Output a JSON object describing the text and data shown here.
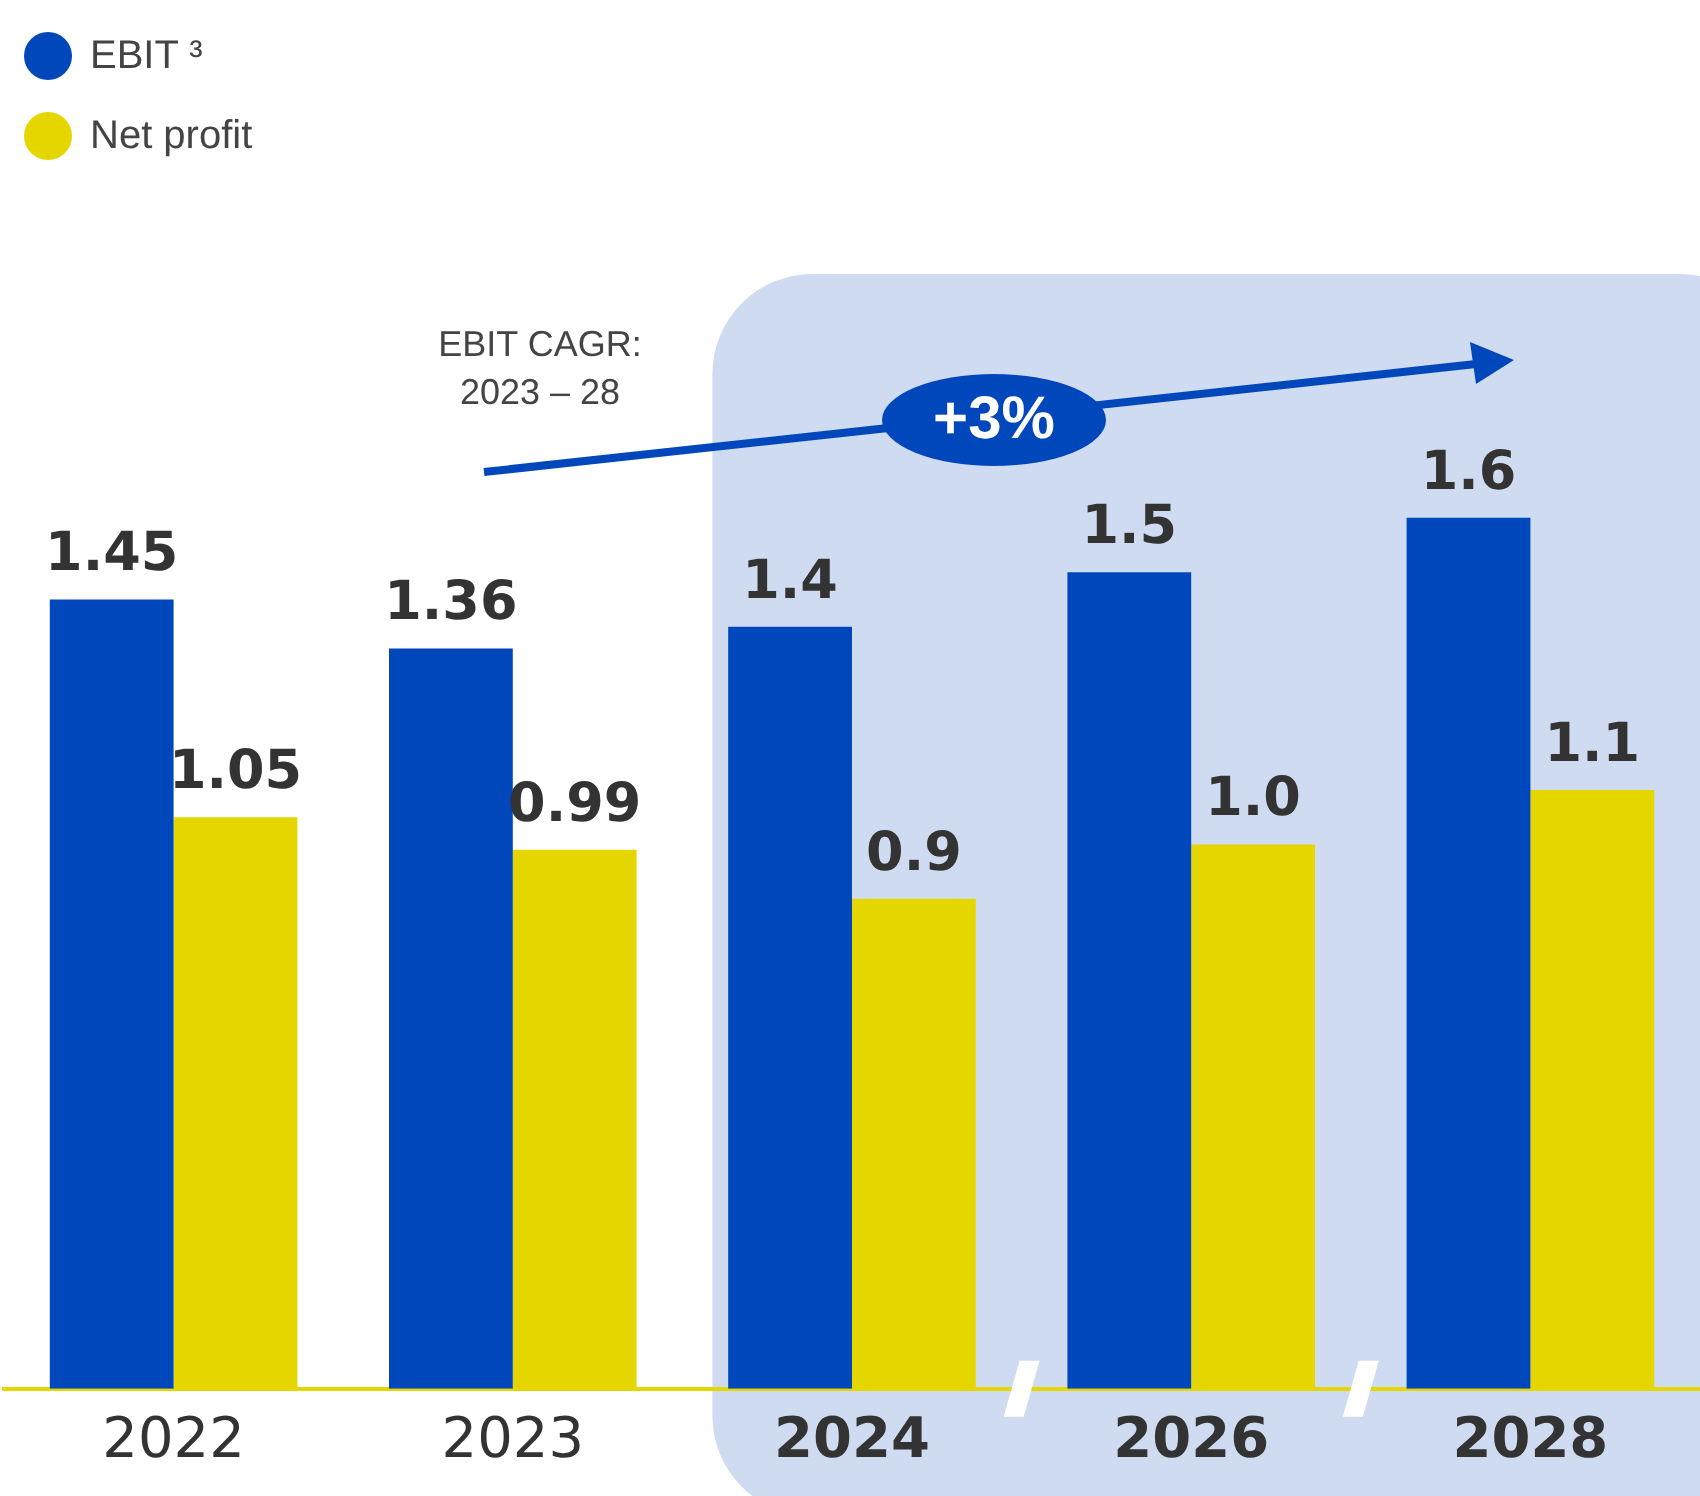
{
  "chart_data": {
    "type": "bar",
    "categories": [
      "2022",
      "2023",
      "2024",
      "2026",
      "2028"
    ],
    "series": [
      {
        "name": "EBIT ³",
        "color": "#0047bb",
        "values": [
          1.45,
          1.36,
          1.4,
          1.5,
          1.6
        ],
        "value_labels": [
          "1.45",
          "1.36",
          "1.4",
          "1.5",
          "1.6"
        ]
      },
      {
        "name": "Net profit",
        "color": "#e5d600",
        "values": [
          1.05,
          0.99,
          0.9,
          1.0,
          1.1
        ],
        "value_labels": [
          "1.05",
          "0.99",
          "0.9",
          "1.0",
          "1.1"
        ]
      }
    ],
    "legend": "top left",
    "grid": false,
    "tick_labels": "x",
    "bands": [
      {
        "axis": "x",
        "from": "2024",
        "to": "2028",
        "color": "#cfdbf0"
      }
    ],
    "annotations": [
      "EBIT CAGR: 2023 – 28",
      "+3%"
    ]
  }
}
